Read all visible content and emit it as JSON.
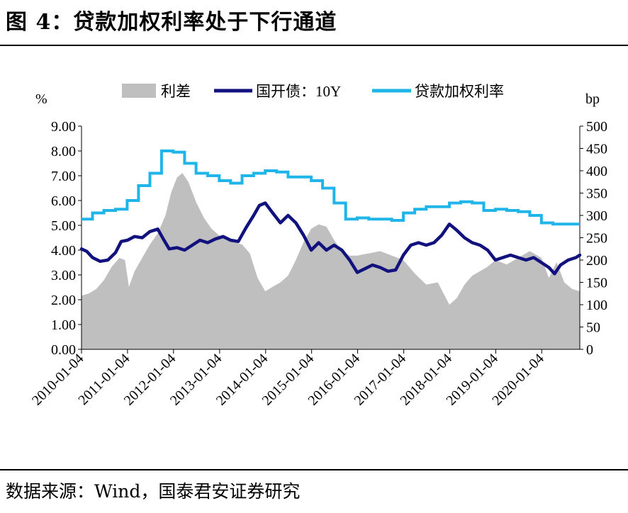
{
  "figure": {
    "title": "图 4：贷款加权利率处于下行通道",
    "source": "数据来源：Wind，国泰君安证券研究"
  },
  "chart_data": {
    "type": "line",
    "left_unit": "%",
    "right_unit": "bp",
    "ylim_left": [
      0,
      9
    ],
    "ylim_right": [
      0,
      500
    ],
    "left_ticks": [
      "0.00",
      "1.00",
      "2.00",
      "3.00",
      "4.00",
      "5.00",
      "6.00",
      "7.00",
      "8.00",
      "9.00"
    ],
    "right_ticks": [
      "0",
      "50",
      "100",
      "150",
      "200",
      "250",
      "300",
      "350",
      "400",
      "450",
      "500"
    ],
    "x_ticks": [
      "2010-01-04",
      "2011-01-04",
      "2012-01-04",
      "2013-01-04",
      "2014-01-04",
      "2015-01-04",
      "2016-01-04",
      "2017-01-04",
      "2018-01-04",
      "2019-01-04",
      "2020-01-04"
    ],
    "xlim": [
      "2010-01-04",
      "2020-11-01"
    ],
    "legend_position": "top",
    "colors": {
      "spread": "#BFBFBF",
      "bond10y": "#12127F",
      "loan_rate": "#1FB5E8"
    },
    "series": [
      {
        "name": "利差",
        "type": "area",
        "axis": "right",
        "points": [
          [
            "2010-01-04",
            120
          ],
          [
            "2010-03-01",
            125
          ],
          [
            "2010-05-01",
            135
          ],
          [
            "2010-07-01",
            155
          ],
          [
            "2010-09-01",
            185
          ],
          [
            "2010-11-01",
            205
          ],
          [
            "2010-12-15",
            200
          ],
          [
            "2011-01-15",
            140
          ],
          [
            "2011-03-01",
            175
          ],
          [
            "2011-05-01",
            205
          ],
          [
            "2011-07-01",
            235
          ],
          [
            "2011-09-01",
            260
          ],
          [
            "2011-11-01",
            300
          ],
          [
            "2011-12-15",
            350
          ],
          [
            "2012-02-01",
            385
          ],
          [
            "2012-03-15",
            395
          ],
          [
            "2012-05-01",
            375
          ],
          [
            "2012-07-01",
            330
          ],
          [
            "2012-09-01",
            295
          ],
          [
            "2012-11-01",
            270
          ],
          [
            "2013-01-01",
            255
          ],
          [
            "2013-03-01",
            245
          ],
          [
            "2013-05-01",
            240
          ],
          [
            "2013-07-01",
            235
          ],
          [
            "2013-09-01",
            215
          ],
          [
            "2013-11-01",
            160
          ],
          [
            "2014-01-01",
            130
          ],
          [
            "2014-03-01",
            140
          ],
          [
            "2014-05-01",
            150
          ],
          [
            "2014-07-01",
            165
          ],
          [
            "2014-09-01",
            200
          ],
          [
            "2014-11-01",
            240
          ],
          [
            "2015-01-01",
            270
          ],
          [
            "2015-03-01",
            280
          ],
          [
            "2015-05-01",
            275
          ],
          [
            "2015-07-01",
            245
          ],
          [
            "2015-09-01",
            220
          ],
          [
            "2015-11-01",
            210
          ],
          [
            "2016-01-01",
            210
          ],
          [
            "2016-04-01",
            215
          ],
          [
            "2016-07-01",
            220
          ],
          [
            "2016-10-01",
            210
          ],
          [
            "2017-01-01",
            200
          ],
          [
            "2017-04-01",
            170
          ],
          [
            "2017-07-01",
            145
          ],
          [
            "2017-10-01",
            150
          ],
          [
            "2018-01-01",
            100
          ],
          [
            "2018-03-01",
            115
          ],
          [
            "2018-05-01",
            145
          ],
          [
            "2018-07-01",
            165
          ],
          [
            "2018-09-01",
            175
          ],
          [
            "2018-11-01",
            185
          ],
          [
            "2019-01-01",
            200
          ],
          [
            "2019-04-01",
            190
          ],
          [
            "2019-07-01",
            205
          ],
          [
            "2019-10-01",
            220
          ],
          [
            "2020-01-01",
            205
          ],
          [
            "2020-03-01",
            160
          ],
          [
            "2020-05-01",
            195
          ],
          [
            "2020-07-01",
            150
          ],
          [
            "2020-09-01",
            135
          ],
          [
            "2020-11-01",
            130
          ]
        ]
      },
      {
        "name": "国开债：10Y",
        "type": "line",
        "axis": "left",
        "points": [
          [
            "2010-01-04",
            4.05
          ],
          [
            "2010-02-15",
            3.95
          ],
          [
            "2010-04-01",
            3.7
          ],
          [
            "2010-06-01",
            3.55
          ],
          [
            "2010-08-01",
            3.6
          ],
          [
            "2010-10-01",
            3.9
          ],
          [
            "2010-11-15",
            4.35
          ],
          [
            "2011-01-04",
            4.4
          ],
          [
            "2011-03-01",
            4.55
          ],
          [
            "2011-05-01",
            4.5
          ],
          [
            "2011-07-01",
            4.75
          ],
          [
            "2011-09-01",
            4.85
          ],
          [
            "2011-10-15",
            4.45
          ],
          [
            "2011-12-01",
            4.05
          ],
          [
            "2012-02-01",
            4.1
          ],
          [
            "2012-04-01",
            4.0
          ],
          [
            "2012-06-01",
            4.2
          ],
          [
            "2012-08-01",
            4.4
          ],
          [
            "2012-10-01",
            4.3
          ],
          [
            "2012-12-01",
            4.45
          ],
          [
            "2013-02-01",
            4.55
          ],
          [
            "2013-04-01",
            4.4
          ],
          [
            "2013-06-01",
            4.35
          ],
          [
            "2013-08-01",
            4.9
          ],
          [
            "2013-10-01",
            5.4
          ],
          [
            "2013-11-15",
            5.8
          ],
          [
            "2014-01-01",
            5.9
          ],
          [
            "2014-03-01",
            5.5
          ],
          [
            "2014-05-01",
            5.1
          ],
          [
            "2014-07-01",
            5.4
          ],
          [
            "2014-09-01",
            5.1
          ],
          [
            "2014-11-01",
            4.6
          ],
          [
            "2015-01-01",
            4.0
          ],
          [
            "2015-03-01",
            4.3
          ],
          [
            "2015-05-01",
            4.0
          ],
          [
            "2015-07-01",
            4.2
          ],
          [
            "2015-09-01",
            4.0
          ],
          [
            "2015-11-01",
            3.6
          ],
          [
            "2016-01-01",
            3.1
          ],
          [
            "2016-03-01",
            3.25
          ],
          [
            "2016-05-01",
            3.4
          ],
          [
            "2016-07-01",
            3.3
          ],
          [
            "2016-09-01",
            3.15
          ],
          [
            "2016-11-01",
            3.2
          ],
          [
            "2017-01-01",
            3.8
          ],
          [
            "2017-03-01",
            4.2
          ],
          [
            "2017-05-01",
            4.3
          ],
          [
            "2017-07-01",
            4.2
          ],
          [
            "2017-09-01",
            4.3
          ],
          [
            "2017-11-01",
            4.6
          ],
          [
            "2018-01-01",
            5.05
          ],
          [
            "2018-03-01",
            4.8
          ],
          [
            "2018-05-01",
            4.5
          ],
          [
            "2018-07-01",
            4.3
          ],
          [
            "2018-09-01",
            4.2
          ],
          [
            "2018-11-01",
            4.0
          ],
          [
            "2019-01-01",
            3.6
          ],
          [
            "2019-03-01",
            3.7
          ],
          [
            "2019-05-01",
            3.8
          ],
          [
            "2019-07-01",
            3.7
          ],
          [
            "2019-09-01",
            3.6
          ],
          [
            "2019-11-01",
            3.7
          ],
          [
            "2020-01-01",
            3.5
          ],
          [
            "2020-03-01",
            3.3
          ],
          [
            "2020-04-15",
            3.05
          ],
          [
            "2020-06-01",
            3.4
          ],
          [
            "2020-08-01",
            3.6
          ],
          [
            "2020-10-01",
            3.7
          ],
          [
            "2020-11-01",
            3.8
          ]
        ]
      },
      {
        "name": "贷款加权利率",
        "type": "step",
        "axis": "left",
        "points": [
          [
            "2010-01-04",
            5.25
          ],
          [
            "2010-04-01",
            5.5
          ],
          [
            "2010-07-01",
            5.6
          ],
          [
            "2010-10-01",
            5.65
          ],
          [
            "2011-01-01",
            6.0
          ],
          [
            "2011-04-01",
            6.6
          ],
          [
            "2011-07-01",
            7.1
          ],
          [
            "2011-10-01",
            8.0
          ],
          [
            "2012-01-01",
            7.95
          ],
          [
            "2012-04-01",
            7.5
          ],
          [
            "2012-07-01",
            7.1
          ],
          [
            "2012-10-01",
            7.0
          ],
          [
            "2013-01-01",
            6.8
          ],
          [
            "2013-04-01",
            6.7
          ],
          [
            "2013-07-01",
            7.0
          ],
          [
            "2013-10-01",
            7.1
          ],
          [
            "2014-01-01",
            7.2
          ],
          [
            "2014-04-01",
            7.15
          ],
          [
            "2014-07-01",
            6.95
          ],
          [
            "2014-10-01",
            6.95
          ],
          [
            "2015-01-01",
            6.8
          ],
          [
            "2015-04-01",
            6.5
          ],
          [
            "2015-07-01",
            5.9
          ],
          [
            "2015-10-01",
            5.25
          ],
          [
            "2016-01-01",
            5.3
          ],
          [
            "2016-04-01",
            5.25
          ],
          [
            "2016-07-01",
            5.25
          ],
          [
            "2016-10-01",
            5.2
          ],
          [
            "2017-01-01",
            5.5
          ],
          [
            "2017-04-01",
            5.65
          ],
          [
            "2017-07-01",
            5.75
          ],
          [
            "2017-10-01",
            5.75
          ],
          [
            "2018-01-01",
            5.9
          ],
          [
            "2018-04-01",
            5.95
          ],
          [
            "2018-07-01",
            5.9
          ],
          [
            "2018-10-01",
            5.6
          ],
          [
            "2019-01-01",
            5.65
          ],
          [
            "2019-04-01",
            5.6
          ],
          [
            "2019-07-01",
            5.55
          ],
          [
            "2019-10-01",
            5.4
          ],
          [
            "2020-01-01",
            5.1
          ],
          [
            "2020-04-01",
            5.05
          ],
          [
            "2020-07-01",
            5.05
          ],
          [
            "2020-11-01",
            5.05
          ]
        ]
      }
    ]
  }
}
